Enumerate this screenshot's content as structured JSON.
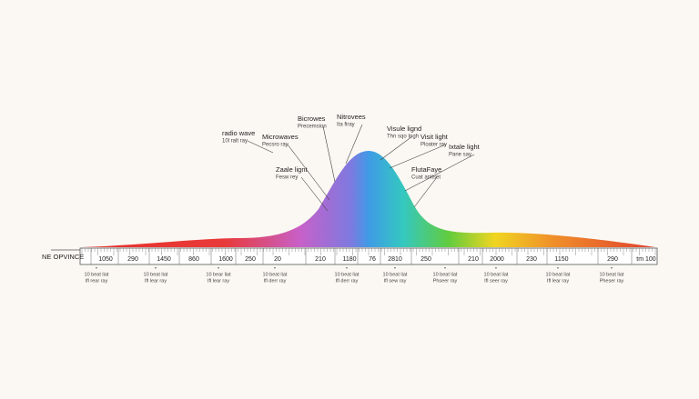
{
  "callouts": [
    {
      "title": "radio wave",
      "subtitle": "10l ralt ray"
    },
    {
      "title": "Microwaves",
      "subtitle": "Pecsro ray"
    },
    {
      "title": "Bicrowes",
      "subtitle": "Precemsion"
    },
    {
      "title": "Nitrovees",
      "subtitle": "Ita firay"
    },
    {
      "title": "Visule lignd",
      "subtitle": "Thn sqo Ingh"
    },
    {
      "title": "Visit light",
      "subtitle": "Ploater ray"
    },
    {
      "title": "Ixtale light",
      "subtitle": "Pane say"
    },
    {
      "title": "Zaale lignt",
      "subtitle": "Fesw rey"
    },
    {
      "title": "FlutaFaye",
      "subtitle": "Cuat anitset"
    }
  ],
  "ruler": {
    "name": "NE OPVINCE",
    "labels": [
      "1050",
      "290",
      "1450",
      "860",
      "1600",
      "250",
      "20",
      "210",
      "1180",
      "76",
      "2810",
      "250",
      "210",
      "2000",
      "230",
      "1150",
      "290",
      "tm 100"
    ]
  },
  "notes": [
    {
      "line1": "10 beat liat",
      "line2": "Ifl rear ray"
    },
    {
      "line1": "10 beat liat",
      "line2": "Ifl lear ray"
    },
    {
      "line1": "10 bear liat",
      "line2": "Ifl lear ray"
    },
    {
      "line1": "10 beat liat",
      "line2": "Ifl derr ray"
    },
    {
      "line1": "10 beat liat",
      "line2": "Ifl derr ray"
    },
    {
      "line1": "10 beat liat",
      "line2": "Ifl sew ray"
    },
    {
      "line1": "10 beat liat",
      "line2": "Phseer ray"
    },
    {
      "line1": "10 beat liat",
      "line2": "Ifl seer ray"
    },
    {
      "line1": "10 beat liat",
      "line2": "Ifl lear ray"
    },
    {
      "line1": "10 beat liat",
      "line2": "Pheser ray"
    }
  ]
}
